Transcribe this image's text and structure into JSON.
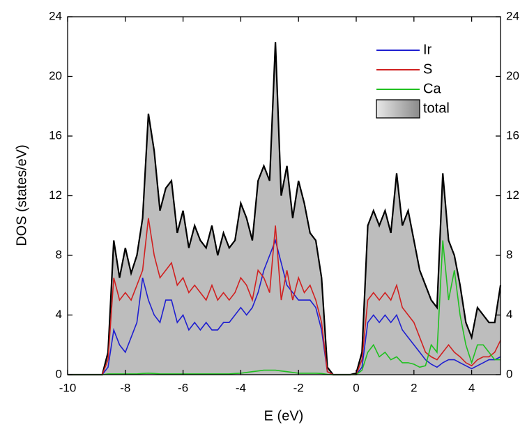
{
  "chart_data": {
    "type": "line",
    "x_label": "E (eV)",
    "y_label": "DOS (states/eV)",
    "x": [
      -10,
      -9.8,
      -9.6,
      -9.4,
      -9.2,
      -9.0,
      -8.8,
      -8.6,
      -8.4,
      -8.2,
      -8.0,
      -7.8,
      -7.6,
      -7.4,
      -7.2,
      -7.0,
      -6.8,
      -6.6,
      -6.4,
      -6.2,
      -6.0,
      -5.8,
      -5.6,
      -5.4,
      -5.2,
      -5.0,
      -4.8,
      -4.6,
      -4.4,
      -4.2,
      -4.0,
      -3.8,
      -3.6,
      -3.4,
      -3.2,
      -3.0,
      -2.8,
      -2.6,
      -2.4,
      -2.2,
      -2.0,
      -1.8,
      -1.6,
      -1.4,
      -1.2,
      -1.0,
      -0.8,
      -0.6,
      -0.4,
      -0.2,
      0,
      0.2,
      0.4,
      0.6,
      0.8,
      1.0,
      1.2,
      1.4,
      1.6,
      1.8,
      2.0,
      2.2,
      2.4,
      2.6,
      2.8,
      3.0,
      3.2,
      3.4,
      3.6,
      3.8,
      4.0,
      4.2,
      4.4,
      4.6,
      4.8,
      5.0
    ],
    "series": [
      {
        "name": "total",
        "color": "#000000",
        "fill": "#bdbdbd",
        "values": [
          0,
          0,
          0,
          0,
          0,
          0,
          0,
          1.5,
          9.0,
          6.5,
          8.5,
          6.8,
          8,
          10.5,
          17.5,
          15,
          11,
          12.5,
          13,
          9.5,
          11,
          8.5,
          10,
          9,
          8.5,
          10,
          8,
          9.5,
          8.5,
          9,
          11.5,
          10.5,
          9,
          13,
          14,
          13,
          22.3,
          12,
          14,
          10.5,
          13,
          11.5,
          9.5,
          9,
          6.5,
          0.5,
          0,
          0,
          0,
          0,
          0.1,
          1.5,
          10,
          11,
          10,
          11,
          9.5,
          13.5,
          10,
          11,
          9,
          7,
          6,
          5,
          4.5,
          13.5,
          9,
          8,
          6,
          3.5,
          2.5,
          4.5,
          4,
          3.5,
          3.5,
          6
        ]
      },
      {
        "name": "Ir",
        "color": "#1f1fd0",
        "values": [
          0,
          0,
          0,
          0,
          0,
          0,
          0,
          0.5,
          3,
          2,
          1.5,
          2.5,
          3.5,
          6.5,
          5,
          4,
          3.5,
          5,
          5,
          3.5,
          4,
          3,
          3.5,
          3,
          3.5,
          3,
          3,
          3.5,
          3.5,
          4,
          4.5,
          4,
          4.5,
          5.5,
          7,
          8,
          9,
          7.5,
          6,
          5.5,
          5,
          5,
          5,
          4.5,
          3,
          0.2,
          0,
          0,
          0,
          0,
          0,
          0.5,
          3.5,
          4,
          3.5,
          4,
          3.5,
          4,
          3,
          2.5,
          2,
          1.5,
          1,
          0.7,
          0.5,
          0.8,
          1,
          1,
          0.8,
          0.6,
          0.4,
          0.6,
          0.8,
          1,
          1,
          1.2
        ]
      },
      {
        "name": "S",
        "color": "#d02020",
        "values": [
          0,
          0,
          0,
          0,
          0,
          0,
          0,
          1,
          6.5,
          5,
          5.5,
          5,
          6,
          7,
          10.5,
          8,
          6.5,
          7,
          7.5,
          6,
          6.5,
          5.5,
          6,
          5.5,
          5,
          6,
          5,
          5.5,
          5,
          5.5,
          6.5,
          6,
          5,
          7,
          6.5,
          5.5,
          10,
          5,
          7,
          5,
          6.5,
          5.5,
          6,
          5,
          3.5,
          0.2,
          0,
          0,
          0,
          0,
          0,
          1,
          5,
          5.5,
          5,
          5.5,
          5,
          6,
          4.5,
          4,
          3.5,
          2.5,
          1.5,
          1.2,
          1,
          1.5,
          2,
          1.5,
          1.2,
          0.8,
          0.6,
          1,
          1.2,
          1.2,
          1.5,
          2.3
        ]
      },
      {
        "name": "Ca",
        "color": "#20c020",
        "values": [
          0,
          0,
          0,
          0,
          0,
          0,
          0,
          0.05,
          0.05,
          0.05,
          0.05,
          0.05,
          0.05,
          0.08,
          0.1,
          0.08,
          0.05,
          0.05,
          0.05,
          0.05,
          0.05,
          0.05,
          0.05,
          0.05,
          0.05,
          0.05,
          0.05,
          0.05,
          0.05,
          0.08,
          0.1,
          0.15,
          0.2,
          0.25,
          0.3,
          0.3,
          0.3,
          0.25,
          0.2,
          0.15,
          0.1,
          0.1,
          0.1,
          0.1,
          0.08,
          0.02,
          0,
          0,
          0,
          0,
          0,
          0.3,
          1.5,
          2,
          1.2,
          1.5,
          1,
          1.2,
          0.8,
          0.8,
          0.7,
          0.5,
          0.6,
          2,
          1.5,
          9,
          5,
          7,
          4,
          2,
          0.8,
          2,
          2,
          1.5,
          1,
          1
        ]
      }
    ],
    "xlim": [
      -10,
      5
    ],
    "xticks": [
      -10,
      -8,
      -6,
      -4,
      -2,
      0,
      2,
      4
    ],
    "ylim": [
      0,
      24
    ],
    "yticks": [
      0,
      4,
      8,
      12,
      16,
      20,
      24
    ],
    "legend": "upper right",
    "legend_order": [
      "Ir",
      "S",
      "Ca",
      "total"
    ]
  }
}
